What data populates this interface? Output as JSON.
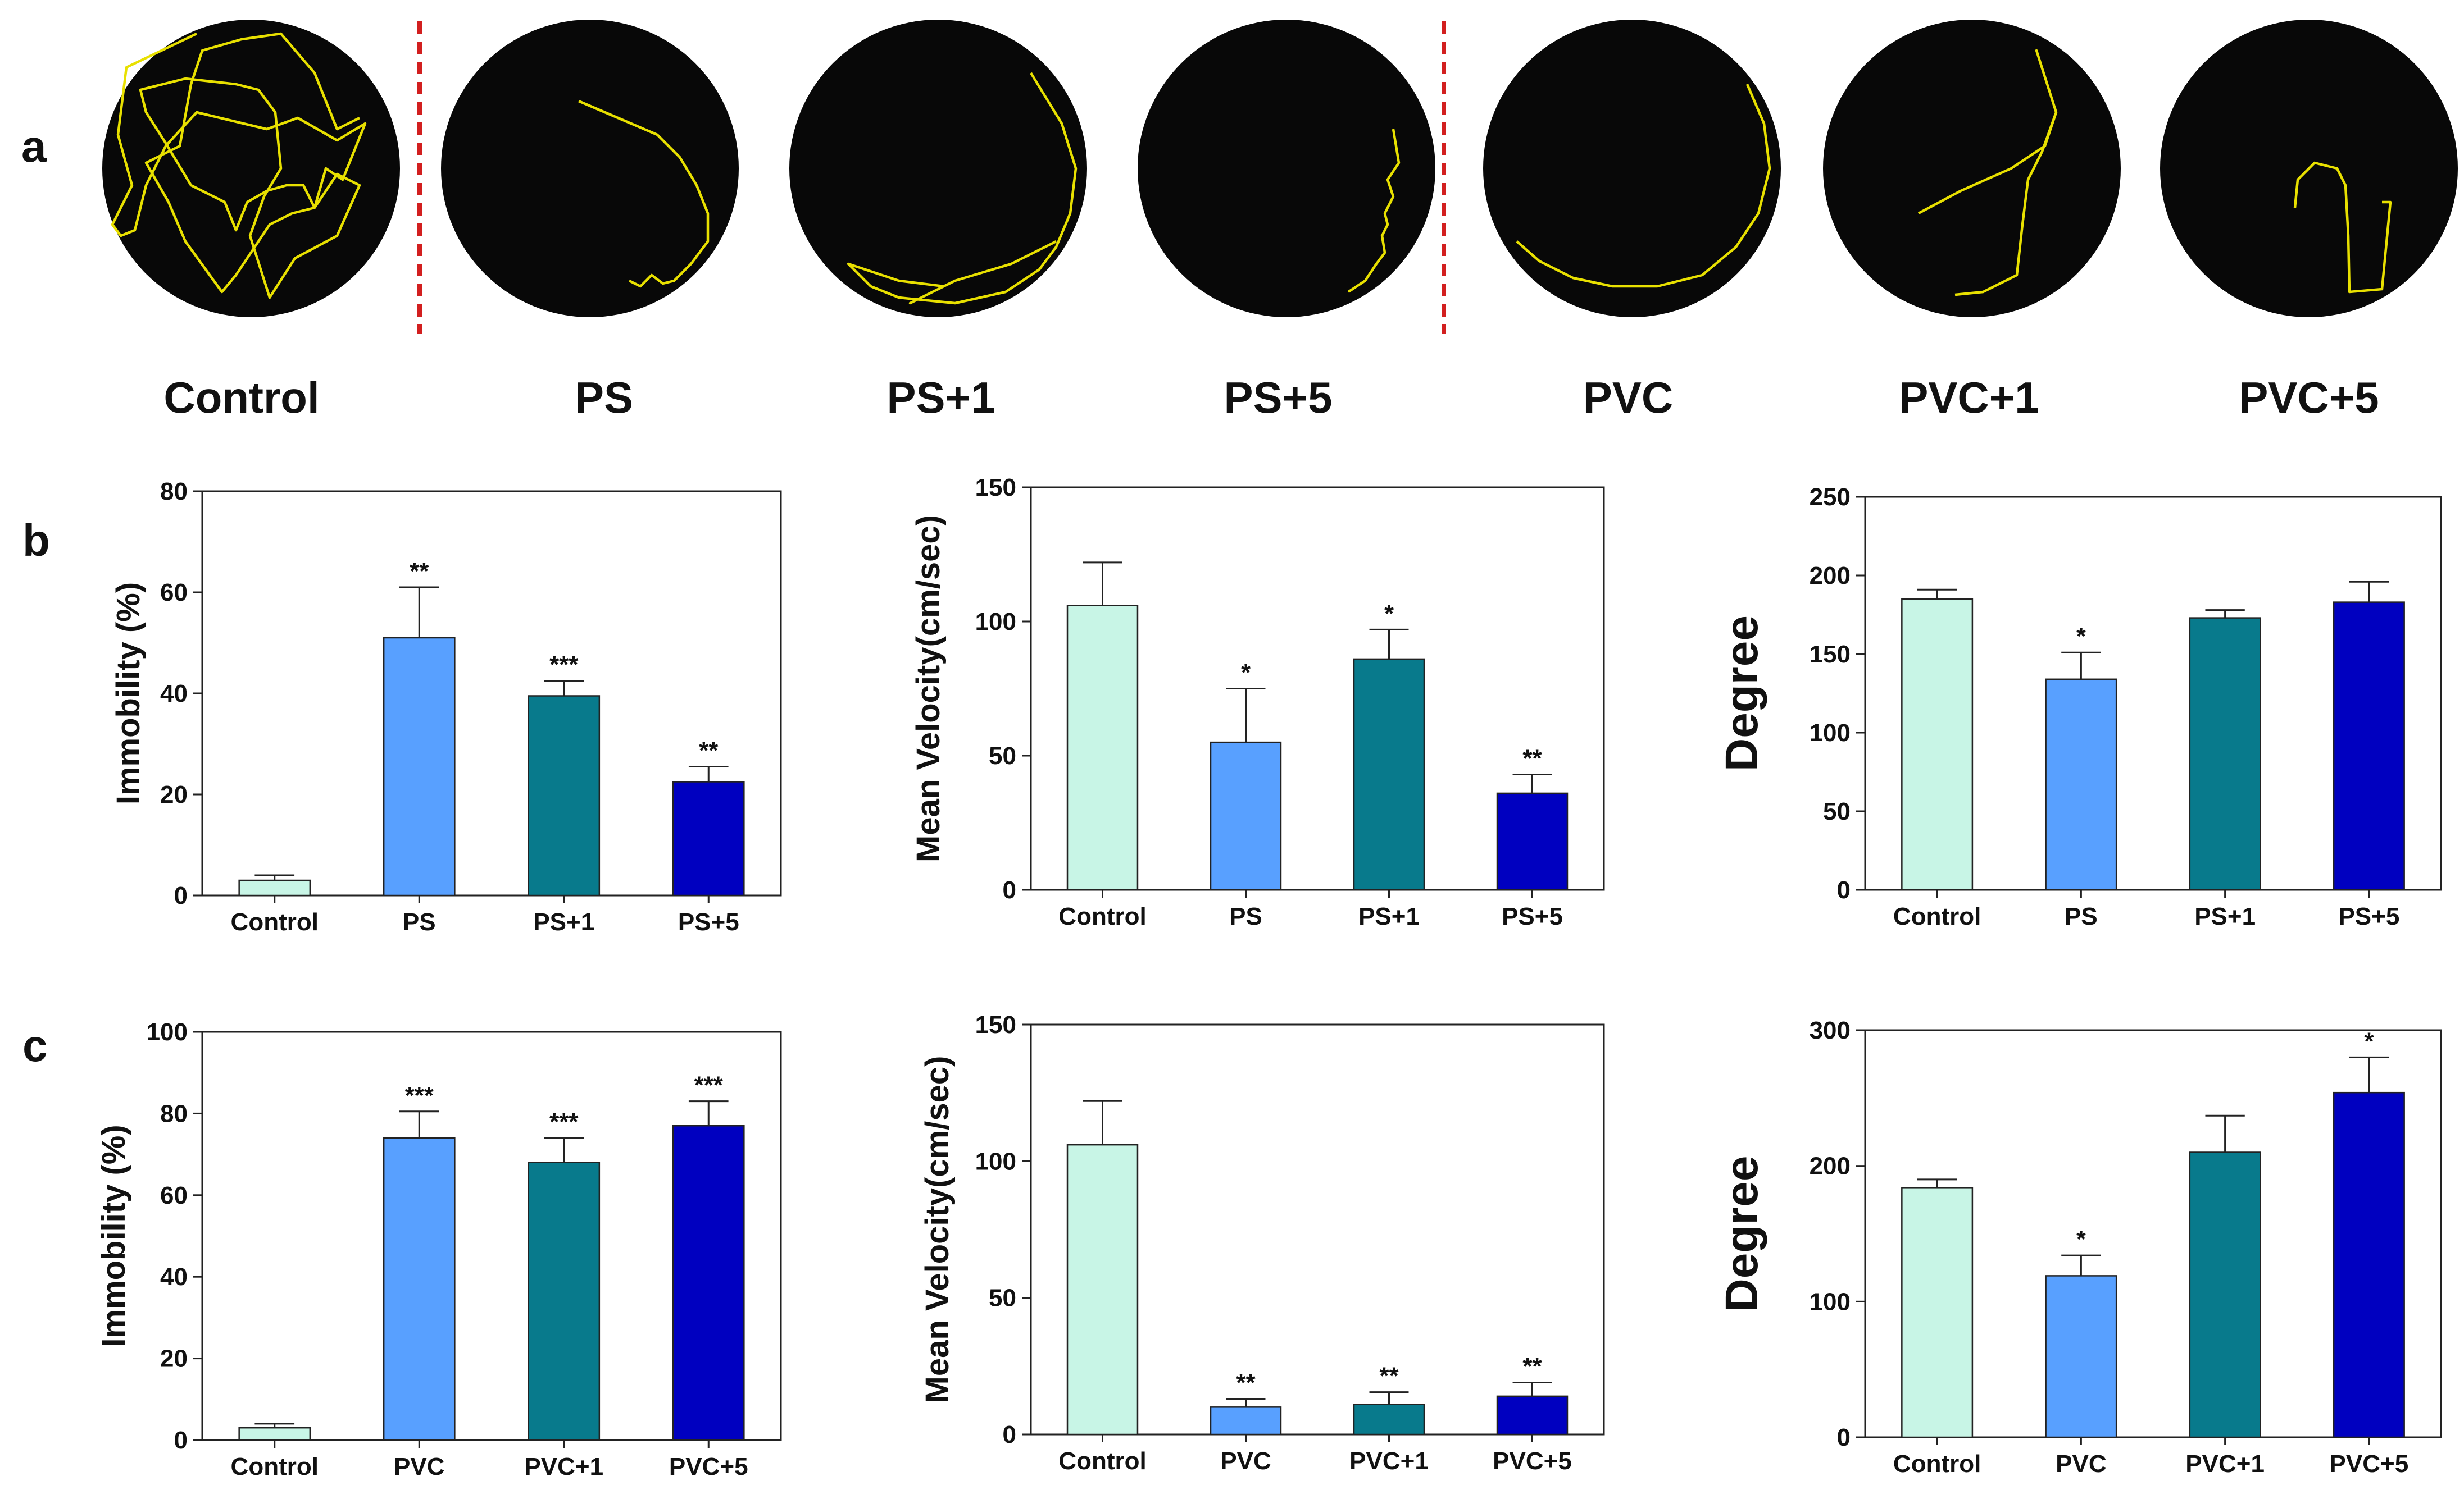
{
  "panel_a": {
    "letter": "a",
    "arenas": [
      {
        "label": "Control"
      },
      {
        "label": "PS"
      },
      {
        "label": "PS+1"
      },
      {
        "label": "PS+5"
      },
      {
        "label": "PVC"
      },
      {
        "label": "PVC+1"
      },
      {
        "label": "PVC+5"
      }
    ]
  },
  "panel_b_letter": "b",
  "panel_c_letter": "c",
  "colors": {
    "bar_colors": [
      "#c8f5e6",
      "#58a0ff",
      "#087a8c",
      "#0000c0"
    ],
    "track": "#e8e000",
    "divider": "#d21f1f",
    "arena": "#080808"
  },
  "chart_data": [
    {
      "id": "b1",
      "type": "bar",
      "title": "",
      "ylabel": "Immobility (%)",
      "xlabel": "",
      "ylim": [
        0,
        80
      ],
      "yticks": [
        0,
        20,
        40,
        60,
        80
      ],
      "categories": [
        "Control",
        "PS",
        "PS+1",
        "PS+5"
      ],
      "values": [
        3,
        51,
        39.5,
        22.5
      ],
      "errors": [
        1,
        10,
        3,
        3
      ],
      "significance": [
        "",
        "**",
        "***",
        "**"
      ]
    },
    {
      "id": "b2",
      "type": "bar",
      "title": "",
      "ylabel": "Mean Velocity(cm/sec)",
      "xlabel": "",
      "ylim": [
        0,
        150
      ],
      "yticks": [
        0,
        50,
        100,
        150
      ],
      "categories": [
        "Control",
        "PS",
        "PS+1",
        "PS+5"
      ],
      "values": [
        106,
        55,
        86,
        36
      ],
      "errors": [
        16,
        20,
        11,
        7
      ],
      "significance": [
        "",
        "*",
        "*",
        "**"
      ]
    },
    {
      "id": "b3",
      "type": "bar",
      "title": "",
      "ylabel": "Degree",
      "xlabel": "",
      "ylim": [
        0,
        250
      ],
      "yticks": [
        0,
        50,
        100,
        150,
        200,
        250
      ],
      "categories": [
        "Control",
        "PS",
        "PS+1",
        "PS+5"
      ],
      "values": [
        185,
        134,
        173,
        183
      ],
      "errors": [
        6,
        17,
        5,
        13
      ],
      "significance": [
        "",
        "*",
        "",
        ""
      ]
    },
    {
      "id": "c1",
      "type": "bar",
      "title": "",
      "ylabel": "Immobility (%)",
      "xlabel": "",
      "ylim": [
        0,
        100
      ],
      "yticks": [
        0,
        20,
        40,
        60,
        80,
        100
      ],
      "categories": [
        "Control",
        "PVC",
        "PVC+1",
        "PVC+5"
      ],
      "values": [
        3,
        74,
        68,
        77
      ],
      "errors": [
        1,
        6.5,
        6,
        6
      ],
      "significance": [
        "",
        "***",
        "***",
        "***"
      ]
    },
    {
      "id": "c2",
      "type": "bar",
      "title": "",
      "ylabel": "Mean Velocity(cm/sec)",
      "xlabel": "",
      "ylim": [
        0,
        150
      ],
      "yticks": [
        0,
        50,
        100,
        150
      ],
      "categories": [
        "Control",
        "PVC",
        "PVC+1",
        "PVC+5"
      ],
      "values": [
        106,
        10,
        11,
        14
      ],
      "errors": [
        16,
        3,
        4.5,
        5
      ],
      "significance": [
        "",
        "**",
        "**",
        "**"
      ]
    },
    {
      "id": "c3",
      "type": "bar",
      "title": "",
      "ylabel": "Degree",
      "xlabel": "",
      "ylim": [
        0,
        300
      ],
      "yticks": [
        0,
        100,
        200,
        300
      ],
      "categories": [
        "Control",
        "PVC",
        "PVC+1",
        "PVC+5"
      ],
      "values": [
        184,
        119,
        210,
        254
      ],
      "errors": [
        6,
        15,
        27,
        26
      ],
      "significance": [
        "",
        "*",
        "",
        "*"
      ]
    }
  ]
}
